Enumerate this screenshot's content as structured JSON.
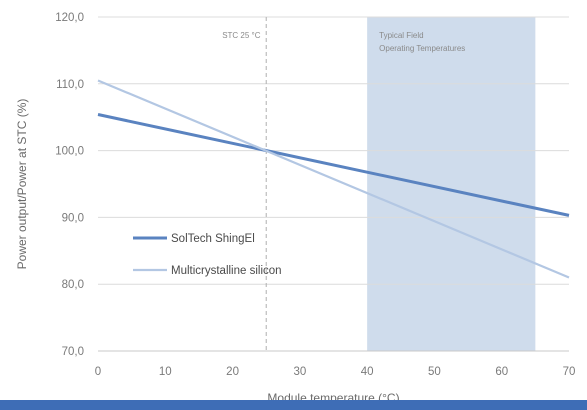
{
  "chart_data": {
    "type": "line",
    "xlabel": "Module temperature (°C)",
    "ylabel": "Power output/Power at STC (%)",
    "xlim": [
      0,
      70
    ],
    "ylim": [
      70,
      120
    ],
    "x_ticks": [
      "0",
      "10",
      "20",
      "30",
      "40",
      "50",
      "60",
      "70"
    ],
    "y_ticks": [
      "70,0",
      "80,0",
      "90,0",
      "100,0",
      "110,0",
      "120,0"
    ],
    "grid": "horizontal",
    "legend": "bottom-left",
    "series": [
      {
        "name": "SolTech ShingEl",
        "color": "#5a83c0",
        "x": [
          0,
          70
        ],
        "y": [
          105.4,
          90.3
        ]
      },
      {
        "name": "Multicrystalline silicon",
        "color": "#b3c7e3",
        "x": [
          0,
          70
        ],
        "y": [
          110.5,
          81.0
        ]
      }
    ],
    "annotations": [
      {
        "text": "STC 25 °C",
        "x": 25
      },
      {
        "text_line1": "Typical Field",
        "text_line2": "Operating Temperatures",
        "x_from": 40,
        "x_to": 65
      }
    ],
    "colors": {
      "band": "#cfdcec",
      "grid": "#dcdcdc",
      "stc_line": "#b0b0b0",
      "bottom_bar": "#3e6db6"
    }
  }
}
